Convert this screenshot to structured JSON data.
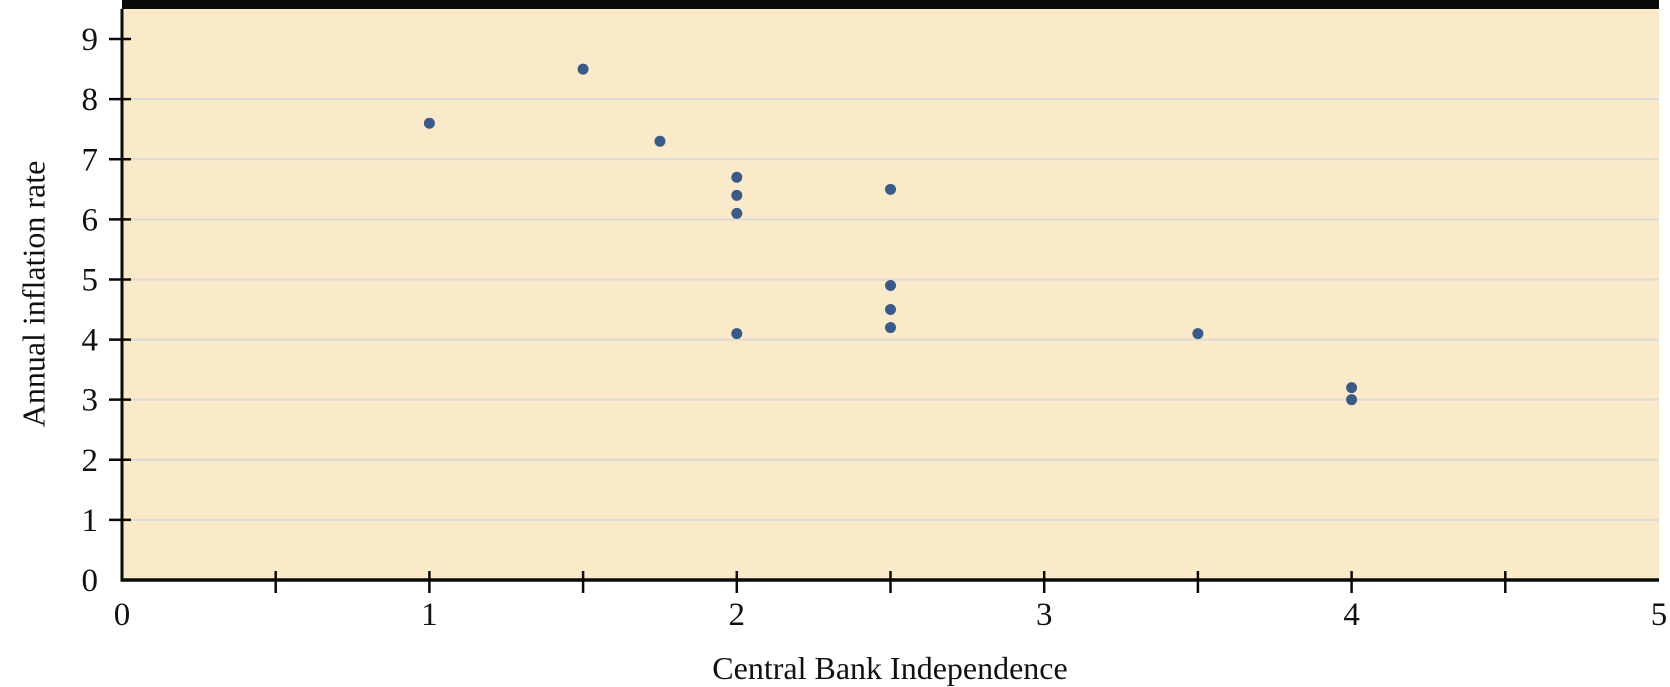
{
  "chart_data": {
    "type": "scatter",
    "title": "",
    "xlabel": "Central Bank Independence",
    "ylabel": "Annual inflation rate",
    "xlim": [
      0,
      5
    ],
    "ylim": [
      0,
      9.5
    ],
    "x_ticks": [
      0,
      1,
      2,
      3,
      4,
      5
    ],
    "x_minor_tick_step": 0.5,
    "y_ticks": [
      0,
      1,
      2,
      3,
      4,
      5,
      6,
      7,
      8,
      9
    ],
    "grid": "horizontal gridlines at integer y values",
    "legend": "none",
    "points": [
      {
        "x": 1.0,
        "y": 7.6
      },
      {
        "x": 1.5,
        "y": 8.5
      },
      {
        "x": 1.75,
        "y": 7.3
      },
      {
        "x": 2.0,
        "y": 6.7
      },
      {
        "x": 2.0,
        "y": 6.4
      },
      {
        "x": 2.0,
        "y": 6.1
      },
      {
        "x": 2.0,
        "y": 4.1
      },
      {
        "x": 2.5,
        "y": 6.5
      },
      {
        "x": 2.5,
        "y": 4.9
      },
      {
        "x": 2.5,
        "y": 4.5
      },
      {
        "x": 2.5,
        "y": 4.2
      },
      {
        "x": 3.5,
        "y": 4.1
      },
      {
        "x": 4.0,
        "y": 3.2
      },
      {
        "x": 4.0,
        "y": 3.0
      }
    ],
    "colors": {
      "page_background": "#FFFFFF",
      "plot_background": "#FAEACA",
      "point": "#3A5A87",
      "gridline": "#DBDBD6",
      "axis": "#0A0A0A",
      "top_border": "#0A0A0A"
    }
  }
}
